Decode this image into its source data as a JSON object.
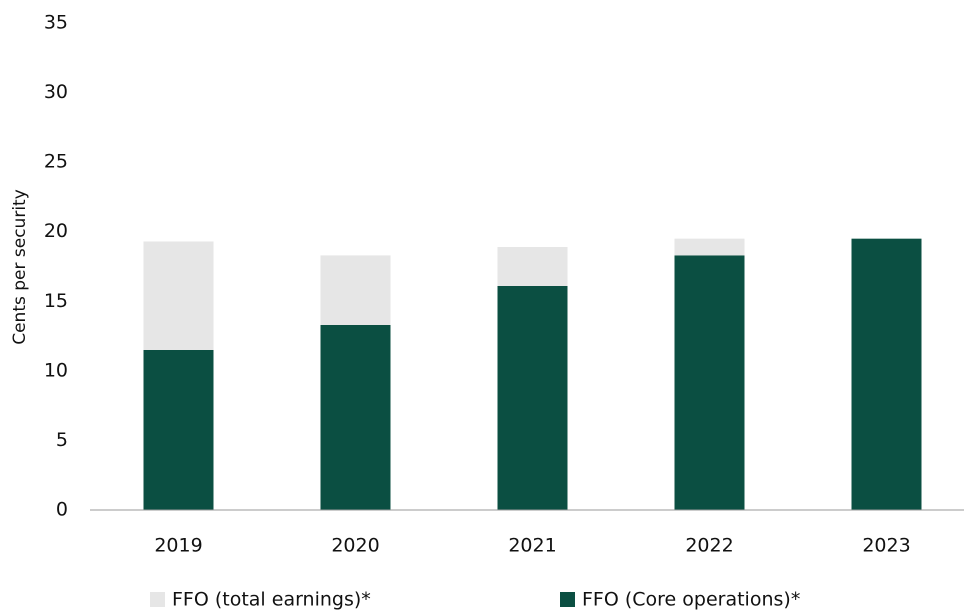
{
  "chart_data": {
    "type": "stacked_bar",
    "categories": [
      "2019",
      "2020",
      "2021",
      "2022",
      "2023"
    ],
    "series": [
      {
        "name": "FFO (total earnings)*",
        "color": "#e6e6e6",
        "values": [
          7.8,
          5.0,
          2.8,
          1.2,
          0
        ]
      },
      {
        "name": "FFO (Core operations)*",
        "color": "#0b4f42",
        "values": [
          11.5,
          13.3,
          16.1,
          18.3,
          19.5
        ]
      }
    ],
    "y_label": "Cents per security",
    "ylim": [
      0,
      35
    ],
    "yticks": [
      0,
      5,
      10,
      15,
      20,
      25,
      30,
      35
    ],
    "grid": false
  }
}
